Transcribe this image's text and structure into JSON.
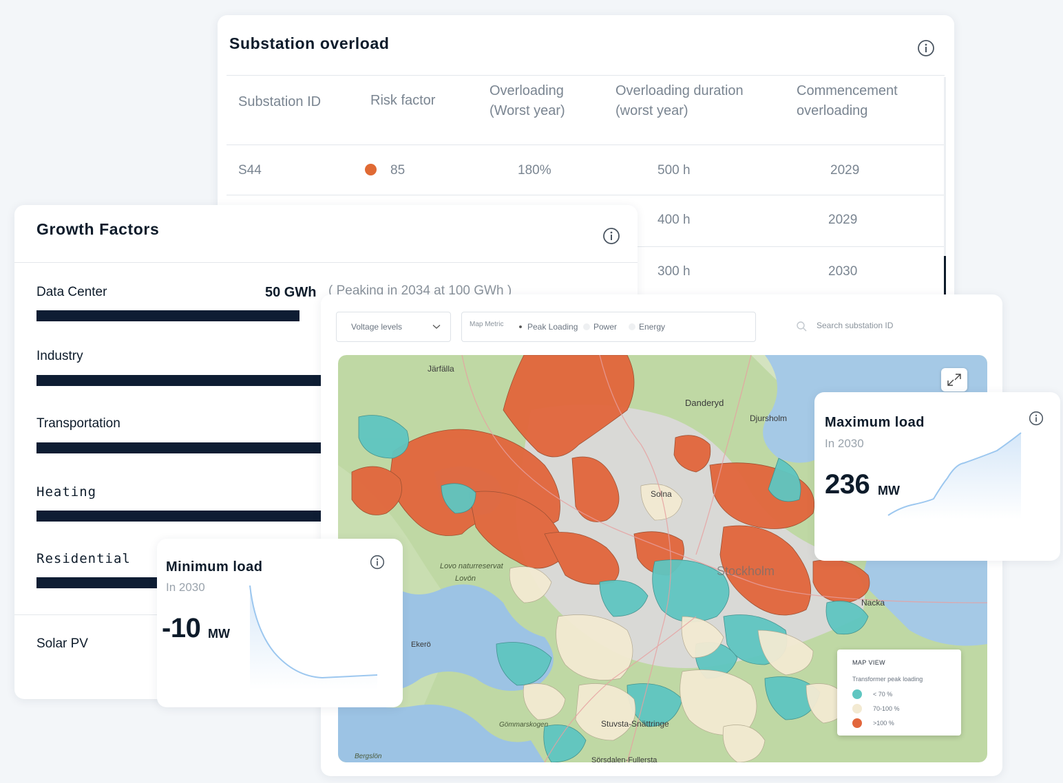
{
  "substation": {
    "title": "Substation overload",
    "columns": [
      "Substation ID",
      "Risk factor",
      "Overloading (Worst year)",
      "Overloading duration (worst year)",
      "Commencement overloading"
    ],
    "rows": [
      {
        "id": "S44",
        "risk": "85",
        "overloading": "180%",
        "duration": "500 h",
        "commencement": "2029"
      },
      {
        "duration": "400 h",
        "commencement": "2029"
      },
      {
        "duration": "300 h",
        "commencement": "2030"
      }
    ],
    "risk_color": "#e06a34"
  },
  "growth": {
    "title": "Growth Factors",
    "items": [
      {
        "label": "Data Center",
        "value": "50 GWh",
        "note": "( Peaking in 2034 at 100 GWh )",
        "fill": 0.83
      },
      {
        "label": "Industry",
        "fill": 1.0
      },
      {
        "label": "Transportation",
        "fill": 1.0
      },
      {
        "label": "Heating",
        "fill": 1.0
      },
      {
        "label": "Residential",
        "fill": 1.0
      },
      {
        "label": "Solar PV"
      }
    ],
    "bar_color": "#0e1d33"
  },
  "map_panel": {
    "voltage_select": "Voltage levels",
    "metric_label": "Map Metric",
    "metrics": [
      {
        "label": "Peak Loading",
        "selected": true
      },
      {
        "label": "Power",
        "selected": false
      },
      {
        "label": "Energy",
        "selected": false
      }
    ],
    "search_placeholder": "Search substation ID",
    "place_labels": [
      "Järfälla",
      "Danderyd",
      "Djursholm",
      "Solna",
      "Stockholm",
      "Nacka",
      "Ekerö",
      "Lovo naturreservat",
      "Lovön",
      "Stuvsta-Snättringe",
      "Gömmarskogen",
      "Sörsdalen-Fullersta",
      "Bergslön"
    ],
    "legend": {
      "title": "MAP VIEW",
      "subtitle": "Transformer peak loading",
      "items": [
        {
          "label": "< 70 %",
          "color": "#5fc6c1"
        },
        {
          "label": "70-100 %",
          "color": "#f3ead2"
        },
        {
          "label": ">100 %",
          "color": "#e2663c"
        }
      ]
    }
  },
  "max_load": {
    "title": "Maximum load",
    "subtitle": "In 2030",
    "value": "236",
    "unit": "MW"
  },
  "min_load": {
    "title": "Minimum load",
    "subtitle": "In 2030",
    "value": "-10",
    "unit": "MW"
  }
}
